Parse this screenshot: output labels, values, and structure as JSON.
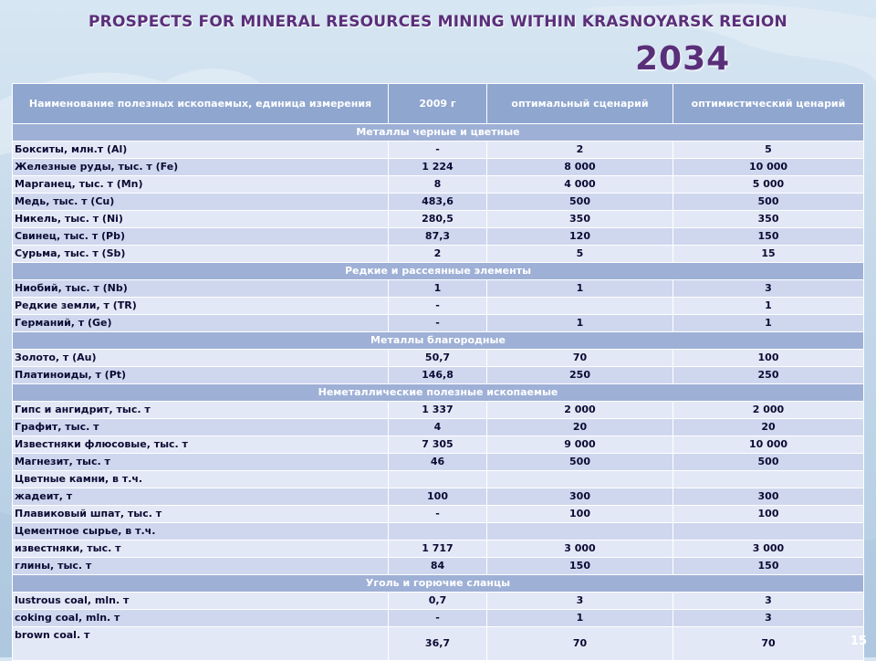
{
  "slide": {
    "title": "PROSPECTS FOR MINERAL RESOURCES MINING WITHIN KRASNOYARSK REGION",
    "year": "2034",
    "page_number": "15"
  },
  "table": {
    "headers": [
      "Наименование полезных ископаемых, единица измерения",
      "2009 г",
      "оптимальный сценарий",
      "оптимистический ценарий"
    ],
    "rows": [
      {
        "type": "section",
        "label": "Металлы черные и цветные"
      },
      {
        "type": "row",
        "cells": [
          "Бокситы, млн.т (Al)",
          "-",
          "2",
          "5"
        ]
      },
      {
        "type": "row",
        "cells": [
          "Железные руды, тыс. т (Fe)",
          "1 224",
          "8 000",
          "10 000"
        ]
      },
      {
        "type": "row",
        "cells": [
          "Марганец, тыс. т (Mn)",
          "8",
          "4 000",
          "5 000"
        ]
      },
      {
        "type": "row",
        "cells": [
          "Медь, тыс. т (Cu)",
          "483,6",
          "500",
          "500"
        ]
      },
      {
        "type": "row",
        "cells": [
          "Никель, тыс. т (Ni)",
          "280,5",
          "350",
          "350"
        ]
      },
      {
        "type": "row",
        "cells": [
          "Свинец, тыс. т (Pb)",
          "87,3",
          "120",
          "150"
        ]
      },
      {
        "type": "row",
        "cells": [
          "Сурьма, тыс. т (Sb)",
          "2",
          "5",
          "15"
        ]
      },
      {
        "type": "section",
        "label": "Редкие и рассеянные элементы"
      },
      {
        "type": "row",
        "cells": [
          "Ниобий, тыс. т (Nb)",
          "1",
          "1",
          "3"
        ]
      },
      {
        "type": "row",
        "cells": [
          "Редкие земли, т (TR)",
          "-",
          "",
          "1"
        ]
      },
      {
        "type": "row",
        "cells": [
          "Германий, т (Ge)",
          "-",
          "1",
          "1"
        ]
      },
      {
        "type": "section",
        "label": "Металлы благородные"
      },
      {
        "type": "row",
        "cells": [
          "Золото, т (Au)",
          "50,7",
          "70",
          "100"
        ]
      },
      {
        "type": "row",
        "cells": [
          "Платиноиды, т (Pt)",
          "146,8",
          "250",
          "250"
        ]
      },
      {
        "type": "section",
        "label": "Неметаллические полезные ископаемые"
      },
      {
        "type": "row",
        "cells": [
          "Гипс и ангидрит, тыс. т",
          "1 337",
          "2 000",
          "2 000"
        ]
      },
      {
        "type": "row",
        "cells": [
          "Графит, тыс. т",
          "4",
          "20",
          "20"
        ]
      },
      {
        "type": "row",
        "cells": [
          "Известняки флюсовые, тыс. т",
          "7 305",
          "9 000",
          "10 000"
        ]
      },
      {
        "type": "row",
        "cells": [
          "Магнезит, тыс. т",
          "46",
          "500",
          "500"
        ]
      },
      {
        "type": "row",
        "cells": [
          "Цветные камни, в т.ч.",
          "",
          "",
          ""
        ]
      },
      {
        "type": "row",
        "cells": [
          "жадеит, т",
          "100",
          "300",
          "300"
        ]
      },
      {
        "type": "row",
        "cells": [
          "Плавиковый шпат, тыс. т",
          "-",
          "100",
          "100"
        ]
      },
      {
        "type": "row",
        "cells": [
          "Цементное сырье, в т.ч.",
          "",
          "",
          ""
        ]
      },
      {
        "type": "row",
        "cells": [
          "известняки, тыс. т",
          "1 717",
          "3 000",
          "3 000"
        ]
      },
      {
        "type": "row",
        "cells": [
          "глины, тыс. т",
          "84",
          "150",
          "150"
        ]
      },
      {
        "type": "section",
        "label": "Уголь и горючие сланцы"
      },
      {
        "type": "row",
        "cells": [
          "lustrous coal, mln. т",
          "0,7",
          "3",
          "3"
        ]
      },
      {
        "type": "row",
        "cells": [
          "coking coal,  mln. т",
          "-",
          "1",
          "3"
        ]
      },
      {
        "type": "row",
        "cells": [
          "brown coal. т",
          "36,7",
          "70",
          "70"
        ]
      }
    ]
  },
  "colors": {
    "title": "#5a2f7a",
    "header_bg": "#8fa6cf",
    "section_bg": "#9eb0d6",
    "row_light": "#e3e8f6",
    "row_alt": "#cfd7ef"
  }
}
